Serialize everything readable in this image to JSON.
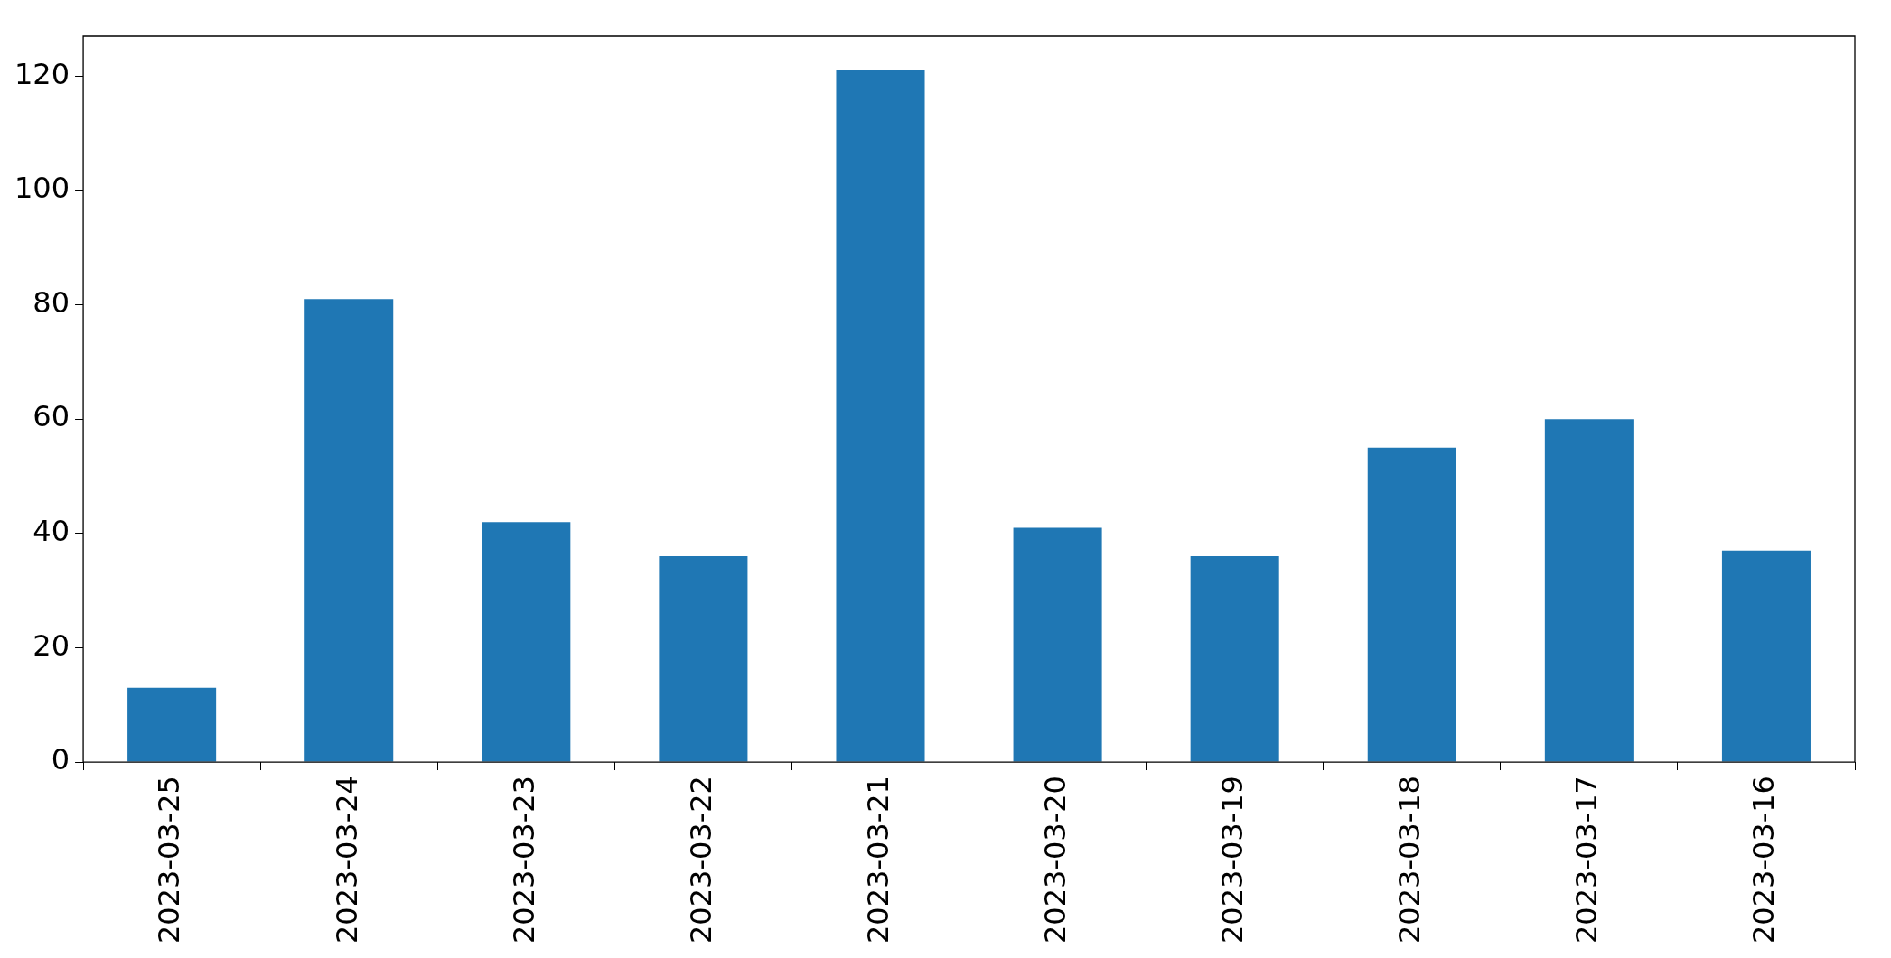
{
  "chart_data": {
    "type": "bar",
    "categories": [
      "2023-03-25",
      "2023-03-24",
      "2023-03-23",
      "2023-03-22",
      "2023-03-21",
      "2023-03-20",
      "2023-03-19",
      "2023-03-18",
      "2023-03-17",
      "2023-03-16"
    ],
    "values": [
      13,
      81,
      42,
      36,
      121,
      41,
      36,
      55,
      60,
      37
    ],
    "color": "#1f77b4",
    "ylim": [
      0,
      127
    ],
    "yticks": [
      0,
      20,
      40,
      60,
      80,
      100,
      120
    ],
    "grid": false
  }
}
